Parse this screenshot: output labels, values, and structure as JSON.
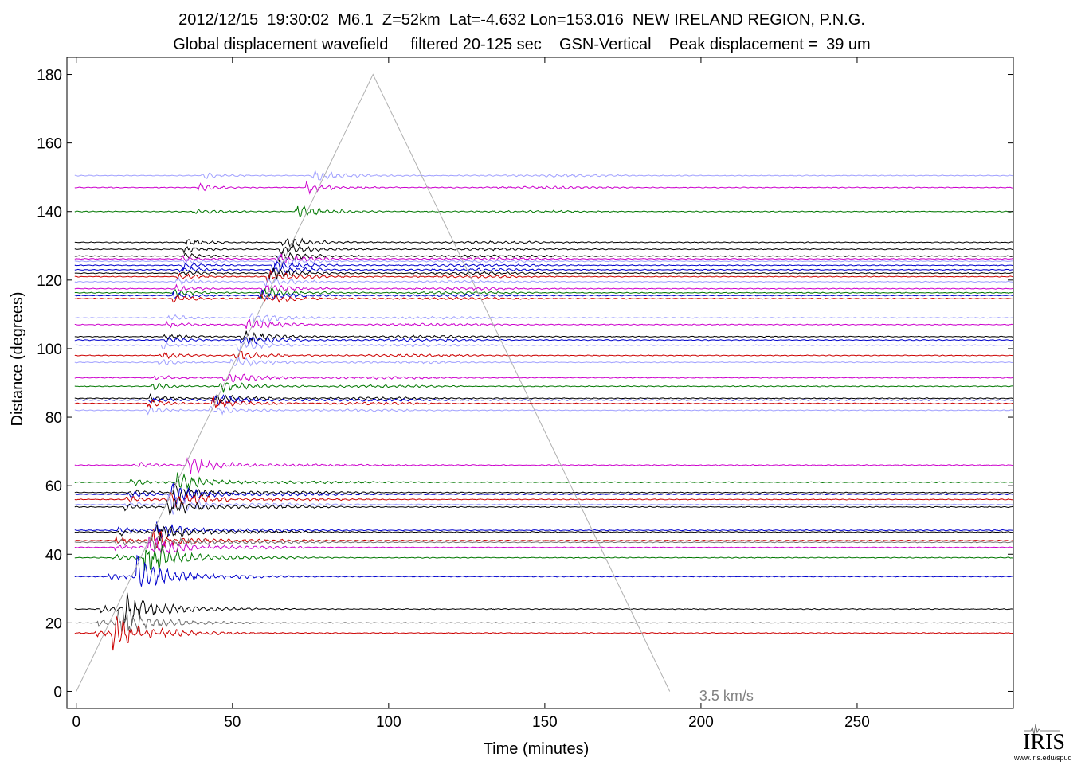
{
  "header": {
    "line1": "2012/12/15  19:30:02  M6.1  Z=52km  Lat=-4.632 Lon=153.016  NEW IRELAND REGION, P.N.G.",
    "line2": "Global displacement wavefield     filtered 20-125 sec    GSN-Vertical    Peak displacement =  39 um"
  },
  "logo": {
    "text": "IRIS",
    "url": "www.iris.edu/spud"
  },
  "chart_data": {
    "type": "line",
    "title": "2012/12/15  19:30:02  M6.1  Z=52km  Lat=-4.632 Lon=153.016  NEW IRELAND REGION, P.N.G.",
    "subtitle": "Global displacement wavefield     filtered 20-125 sec    GSN-Vertical    Peak displacement =  39 um",
    "xlabel": "Time (minutes)",
    "ylabel": "Distance (degrees)",
    "xlim": [
      -3,
      300
    ],
    "ylim": [
      -5,
      185
    ],
    "xticks": [
      0,
      50,
      100,
      150,
      200,
      250
    ],
    "yticks": [
      0,
      20,
      40,
      60,
      80,
      100,
      120,
      140,
      160,
      180
    ],
    "grid": false,
    "annotation": {
      "text": "3.5 km/s",
      "x": 200,
      "y": -2
    },
    "reference_line": {
      "label": "3.5 km/s",
      "points": [
        [
          0,
          0
        ],
        [
          95,
          180
        ],
        [
          190,
          0
        ]
      ]
    },
    "colors": [
      "#a0a0ff",
      "#cc00cc",
      "#007700",
      "#000000",
      "#0000cc",
      "#cc0000",
      "#707070"
    ],
    "traces": [
      {
        "distance": 150.5,
        "color": "#a0a0ff"
      },
      {
        "distance": 147,
        "color": "#cc00cc"
      },
      {
        "distance": 140,
        "color": "#007700"
      },
      {
        "distance": 131,
        "color": "#000000"
      },
      {
        "distance": 129,
        "color": "#000000"
      },
      {
        "distance": 127,
        "color": "#000000"
      },
      {
        "distance": 126.2,
        "color": "#cc00cc"
      },
      {
        "distance": 125.5,
        "color": "#a0a0ff"
      },
      {
        "distance": 124.3,
        "color": "#0000cc"
      },
      {
        "distance": 123,
        "color": "#0000cc"
      },
      {
        "distance": 122,
        "color": "#000000"
      },
      {
        "distance": 121,
        "color": "#cc0000"
      },
      {
        "distance": 119.5,
        "color": "#a0a0ff"
      },
      {
        "distance": 117.5,
        "color": "#cc00cc"
      },
      {
        "distance": 116.3,
        "color": "#007700"
      },
      {
        "distance": 115.5,
        "color": "#0000cc"
      },
      {
        "distance": 114.6,
        "color": "#cc0000"
      },
      {
        "distance": 109,
        "color": "#a0a0ff"
      },
      {
        "distance": 107,
        "color": "#cc00cc"
      },
      {
        "distance": 103.5,
        "color": "#000000"
      },
      {
        "distance": 102.5,
        "color": "#0000cc"
      },
      {
        "distance": 101,
        "color": "#a0a0ff"
      },
      {
        "distance": 98,
        "color": "#cc0000"
      },
      {
        "distance": 96,
        "color": "#a0a0ff"
      },
      {
        "distance": 91.5,
        "color": "#cc00cc"
      },
      {
        "distance": 89,
        "color": "#007700"
      },
      {
        "distance": 85.5,
        "color": "#000000"
      },
      {
        "distance": 85,
        "color": "#0000cc"
      },
      {
        "distance": 84,
        "color": "#cc0000"
      },
      {
        "distance": 82,
        "color": "#a0a0ff"
      },
      {
        "distance": 66,
        "color": "#cc00cc"
      },
      {
        "distance": 61,
        "color": "#007700"
      },
      {
        "distance": 58,
        "color": "#000000"
      },
      {
        "distance": 57.5,
        "color": "#0000cc"
      },
      {
        "distance": 56,
        "color": "#cc0000"
      },
      {
        "distance": 54.5,
        "color": "#a0a0ff"
      },
      {
        "distance": 53.8,
        "color": "#000000"
      },
      {
        "distance": 47,
        "color": "#0000cc"
      },
      {
        "distance": 46.5,
        "color": "#000000"
      },
      {
        "distance": 44,
        "color": "#cc0000"
      },
      {
        "distance": 43.5,
        "color": "#707070"
      },
      {
        "distance": 42,
        "color": "#cc00cc"
      },
      {
        "distance": 39,
        "color": "#007700"
      },
      {
        "distance": 33.5,
        "color": "#0000cc"
      },
      {
        "distance": 24,
        "color": "#000000"
      },
      {
        "distance": 20,
        "color": "#707070"
      },
      {
        "distance": 17,
        "color": "#cc0000"
      }
    ]
  }
}
